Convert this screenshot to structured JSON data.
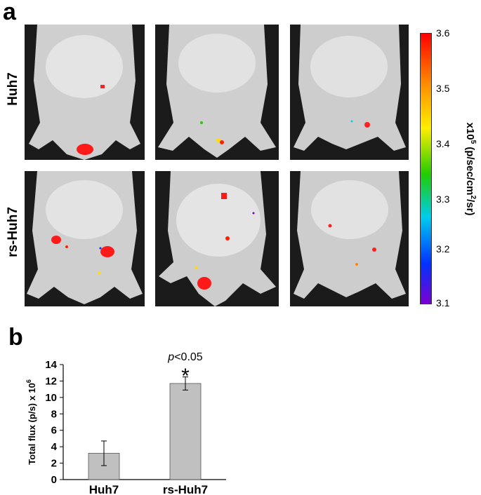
{
  "figure": {
    "panel_a_letter": "a",
    "panel_b_letter": "b",
    "row_labels": [
      "Huh7",
      "rs-Huh7"
    ],
    "images": [
      {
        "row": "Huh7",
        "index": 1
      },
      {
        "row": "Huh7",
        "index": 2
      },
      {
        "row": "Huh7",
        "index": 3
      },
      {
        "row": "rs-Huh7",
        "index": 1
      },
      {
        "row": "rs-Huh7",
        "index": 2
      },
      {
        "row": "rs-Huh7",
        "index": 3
      }
    ]
  },
  "colorbar": {
    "ticks": [
      "3.6",
      "3.5",
      "3.4",
      "3.3",
      "3.2",
      "3.1"
    ],
    "title_prefix": "x10",
    "title_exp": "5",
    "title_mid": " (p/sec/cm",
    "title_exp2": "2",
    "title_suffix": "/sr)",
    "colors": [
      "#ff0000",
      "#ff8800",
      "#ffee00",
      "#22cc00",
      "#00ccee",
      "#0033ff",
      "#7a00d0"
    ]
  },
  "chart_data": {
    "type": "bar",
    "categories": [
      "Huh7",
      "rs-Huh7"
    ],
    "values": [
      3.2,
      11.7
    ],
    "errors": [
      1.5,
      0.8
    ],
    "ylabel": "Total flux (p/s) x 10",
    "ylabel_exp": "6",
    "ylim": [
      0,
      14
    ],
    "yticks": [
      0,
      2,
      4,
      6,
      8,
      10,
      12,
      14
    ],
    "annotation_p": "p",
    "annotation_text": "<0.05",
    "significance_marker": "*",
    "bar_color": "#c0c0c0"
  }
}
